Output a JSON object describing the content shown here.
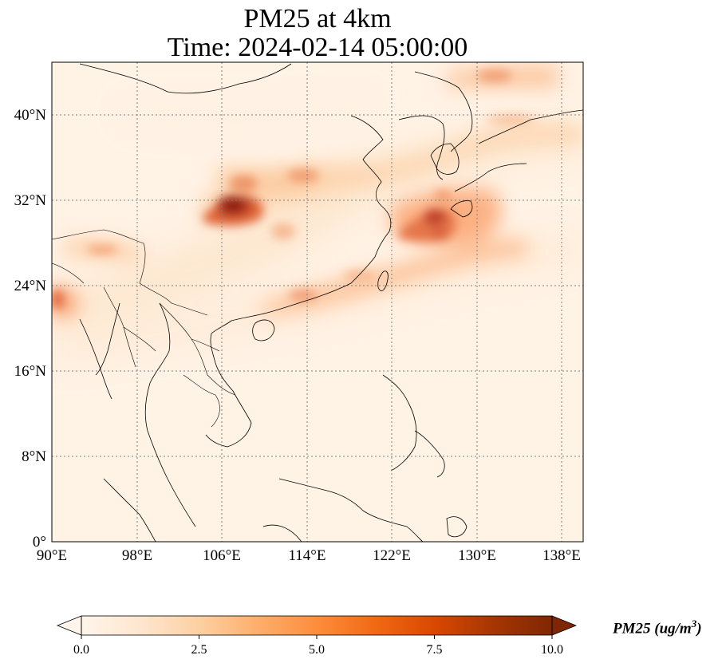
{
  "title": {
    "line1": "PM25 at 4km",
    "line2": "Time: 2024-02-14 05:00:00"
  },
  "map": {
    "lon_range": [
      90,
      140
    ],
    "lat_range": [
      0,
      44
    ],
    "lon_ticks": [
      "90°E",
      "98°E",
      "106°E",
      "114°E",
      "122°E",
      "130°E",
      "138°E"
    ],
    "lat_ticks": [
      "0°",
      "8°N",
      "16°N",
      "24°N",
      "32°N",
      "40°N"
    ],
    "gridlines": true
  },
  "colorbar": {
    "ticks": [
      "0.0",
      "2.5",
      "5.0",
      "7.5",
      "10.0"
    ],
    "label_main": "PM25 (ug/m",
    "label_exp": "3",
    "label_close": ")",
    "extend": "both",
    "colormap": [
      "#fff5eb",
      "#fee6ce",
      "#fdd0a2",
      "#fdae6b",
      "#fd8d3c",
      "#f16913",
      "#d94801",
      "#a63603",
      "#7f2704"
    ]
  }
}
